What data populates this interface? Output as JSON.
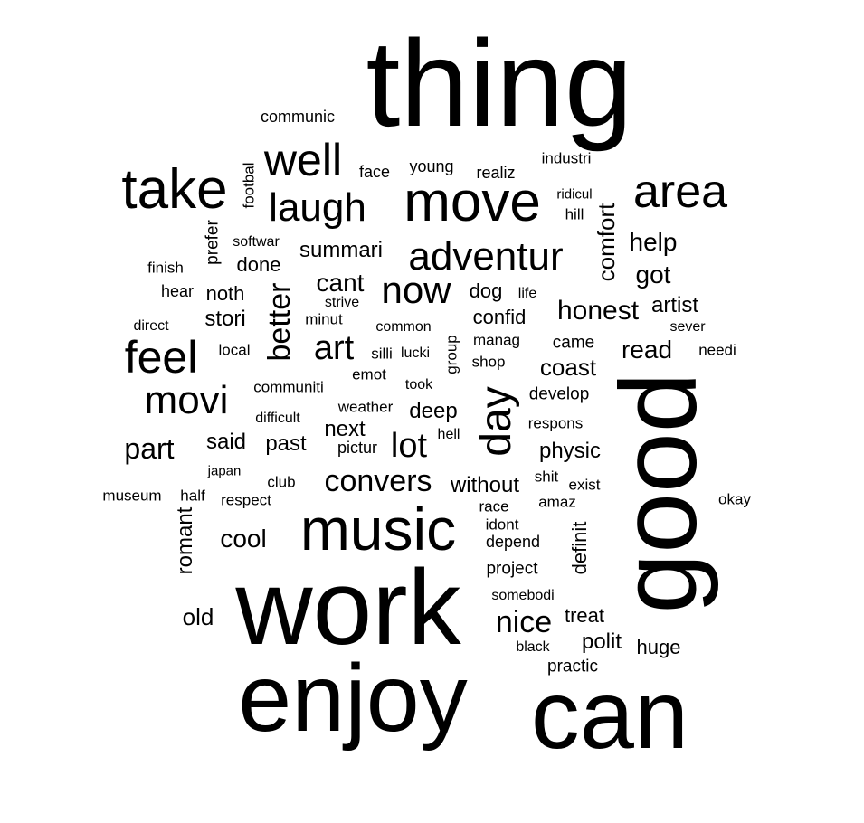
{
  "text_color": "#000000",
  "background_color": "#ffffff",
  "words": [
    {
      "text": "thing"
    },
    {
      "text": "work"
    },
    {
      "text": "enjoy"
    },
    {
      "text": "can"
    },
    {
      "text": "good"
    },
    {
      "text": "music"
    },
    {
      "text": "move"
    },
    {
      "text": "take"
    },
    {
      "text": "area"
    },
    {
      "text": "well"
    },
    {
      "text": "adventur"
    },
    {
      "text": "laugh"
    },
    {
      "text": "feel"
    },
    {
      "text": "movi"
    },
    {
      "text": "now"
    },
    {
      "text": "day"
    },
    {
      "text": "art"
    },
    {
      "text": "lot"
    },
    {
      "text": "better"
    },
    {
      "text": "convers"
    },
    {
      "text": "honest"
    },
    {
      "text": "nice"
    },
    {
      "text": "part"
    },
    {
      "text": "help"
    },
    {
      "text": "got"
    },
    {
      "text": "read"
    },
    {
      "text": "comfort"
    },
    {
      "text": "coast"
    },
    {
      "text": "cant"
    },
    {
      "text": "summari"
    },
    {
      "text": "artist"
    },
    {
      "text": "stori"
    },
    {
      "text": "noth"
    },
    {
      "text": "done"
    },
    {
      "text": "cool"
    },
    {
      "text": "old"
    },
    {
      "text": "romant"
    },
    {
      "text": "next"
    },
    {
      "text": "past"
    },
    {
      "text": "said"
    },
    {
      "text": "physic"
    },
    {
      "text": "without"
    },
    {
      "text": "deep"
    },
    {
      "text": "polit"
    },
    {
      "text": "huge"
    },
    {
      "text": "treat"
    },
    {
      "text": "definit"
    },
    {
      "text": "confid"
    },
    {
      "text": "dog"
    },
    {
      "text": "communic"
    },
    {
      "text": "young"
    },
    {
      "text": "face"
    },
    {
      "text": "realiz"
    },
    {
      "text": "industri"
    },
    {
      "text": "footbal"
    },
    {
      "text": "prefer"
    },
    {
      "text": "softwar"
    },
    {
      "text": "finish"
    },
    {
      "text": "hear"
    },
    {
      "text": "direct"
    },
    {
      "text": "local"
    },
    {
      "text": "minut"
    },
    {
      "text": "strive"
    },
    {
      "text": "common"
    },
    {
      "text": "silli"
    },
    {
      "text": "lucki"
    },
    {
      "text": "emot"
    },
    {
      "text": "took"
    },
    {
      "text": "communiti"
    },
    {
      "text": "weather"
    },
    {
      "text": "difficult"
    },
    {
      "text": "pictur"
    },
    {
      "text": "hell"
    },
    {
      "text": "club"
    },
    {
      "text": "japan"
    },
    {
      "text": "museum"
    },
    {
      "text": "half"
    },
    {
      "text": "respect"
    },
    {
      "text": "ridicul"
    },
    {
      "text": "hill"
    },
    {
      "text": "life"
    },
    {
      "text": "manag"
    },
    {
      "text": "shop"
    },
    {
      "text": "group"
    },
    {
      "text": "came"
    },
    {
      "text": "develop"
    },
    {
      "text": "respons"
    },
    {
      "text": "shit"
    },
    {
      "text": "exist"
    },
    {
      "text": "race"
    },
    {
      "text": "amaz"
    },
    {
      "text": "idont"
    },
    {
      "text": "depend"
    },
    {
      "text": "project"
    },
    {
      "text": "somebodi"
    },
    {
      "text": "black"
    },
    {
      "text": "practic"
    },
    {
      "text": "sever"
    },
    {
      "text": "needi"
    },
    {
      "text": "okay"
    }
  ]
}
